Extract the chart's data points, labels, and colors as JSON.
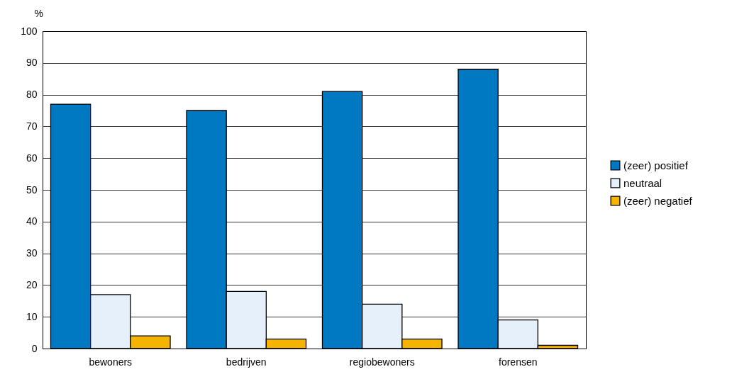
{
  "chart_data": {
    "type": "bar",
    "ylabel": "%",
    "categories": [
      "bewoners",
      "bedrijven",
      "regiobewoners",
      "forensen"
    ],
    "series": [
      {
        "name": "(zeer) positief",
        "color": "#0079c2",
        "values": [
          77,
          75,
          81,
          88
        ]
      },
      {
        "name": "neutraal",
        "color": "#e5f0fa",
        "values": [
          17,
          18,
          14,
          9
        ]
      },
      {
        "name": "(zeer) negatief",
        "color": "#f5b400",
        "values": [
          4,
          3,
          3,
          1
        ]
      }
    ],
    "ylim": [
      0,
      100
    ],
    "yticks": [
      0,
      10,
      20,
      30,
      40,
      50,
      60,
      70,
      80,
      90,
      100
    ],
    "grid": "y",
    "legend": "right"
  }
}
